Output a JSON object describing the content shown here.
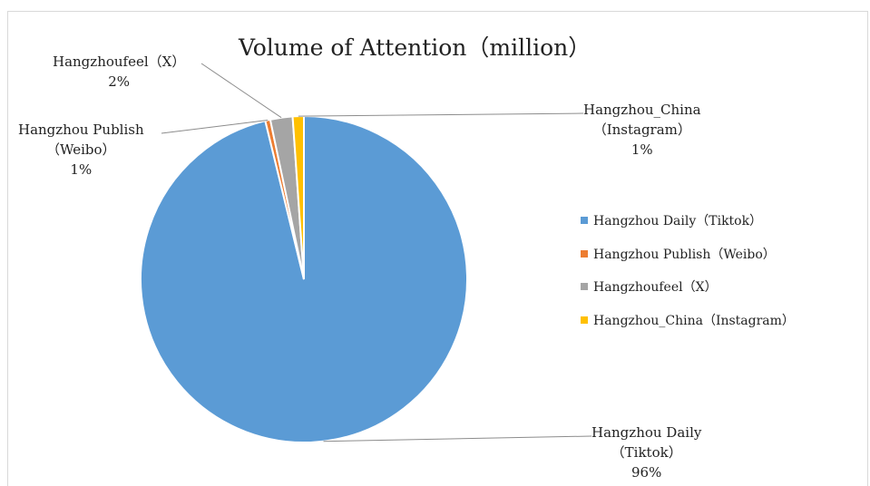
{
  "chart_data": {
    "type": "pie",
    "title": "Volume of Attention（million）",
    "slices": [
      {
        "name": "Hangzhou Daily（Tiktok）",
        "value": 96,
        "color": "#5b9bd5",
        "label_lines": [
          "Hangzhou Daily",
          "（Tiktok）",
          "96%"
        ]
      },
      {
        "name": "Hangzhou Publish（Weibo）",
        "value": 0.5,
        "color": "#ed7d31",
        "label_lines": [
          "Hangzhou Publish",
          "（Weibo）",
          "1%"
        ]
      },
      {
        "name": "Hangzhoufeel（X）",
        "value": 2.2,
        "color": "#a5a5a5",
        "label_lines": [
          "Hangzhoufeel（X）",
          "2%"
        ]
      },
      {
        "name": "Hangzhou_China（Instagram）",
        "value": 1.1,
        "color": "#ffc000",
        "label_lines": [
          "Hangzhou_China",
          "（Instagram）",
          "1%"
        ]
      }
    ],
    "legend_position": "right",
    "start_angle_deg": 0,
    "direction": "clockwise"
  }
}
